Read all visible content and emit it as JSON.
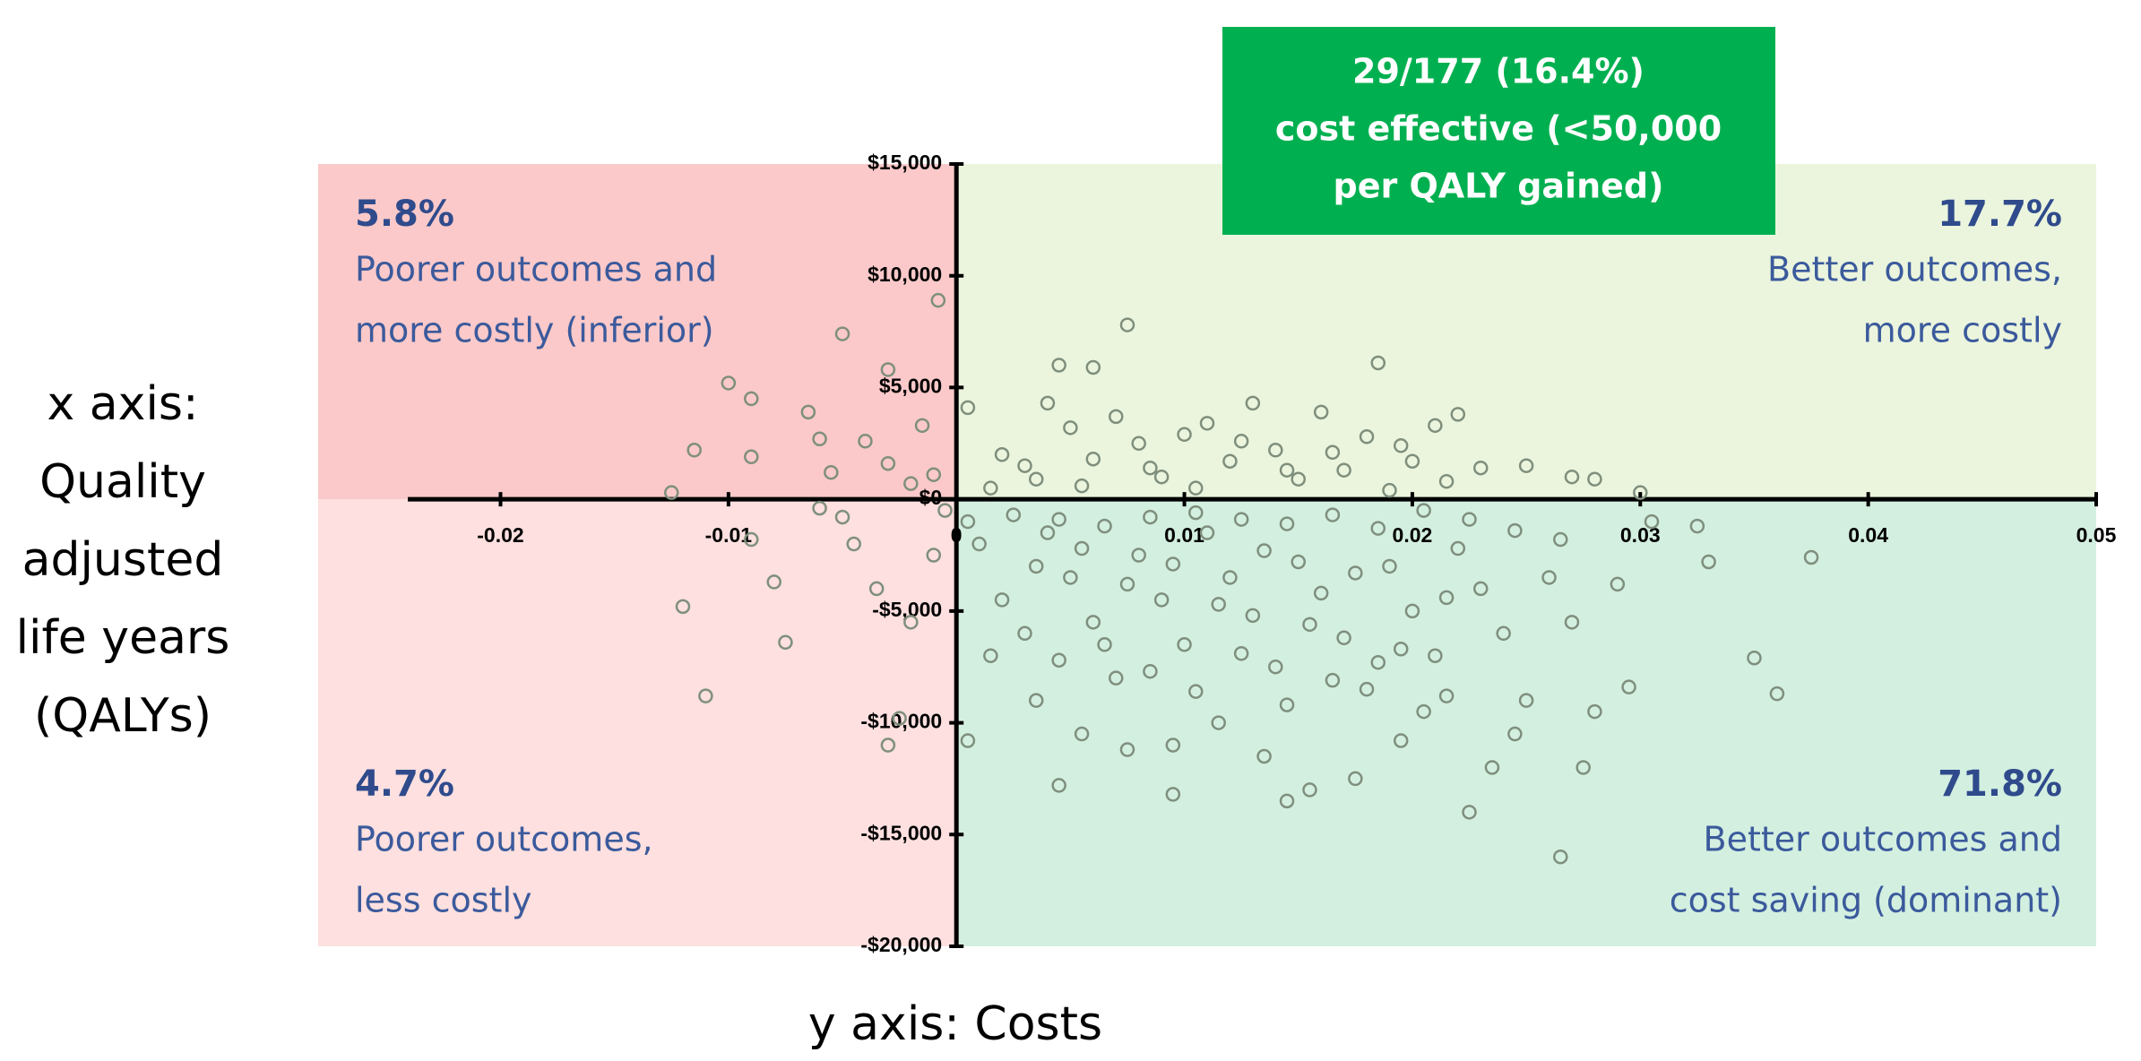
{
  "chart_data": {
    "type": "scatter",
    "x_label": [
      "x axis:",
      "Quality",
      "adjusted",
      "life years",
      "(QALYs)"
    ],
    "y_label": "y axis: Costs",
    "callout": [
      "29/177 (16.4%)",
      "cost effective (<50,000",
      "per QALY gained)"
    ],
    "callout_color": "#00b050",
    "quadrants": [
      {
        "corner": "top-left",
        "color": "#fbc9c9",
        "percent": "5.8%",
        "lines": [
          "Poorer outcomes and",
          "more costly (inferior)"
        ]
      },
      {
        "corner": "top-right",
        "color": "#ebf5dd",
        "percent": "17.7%",
        "lines": [
          "Better outcomes,",
          "more costly"
        ]
      },
      {
        "corner": "bottom-left",
        "color": "#fde0df",
        "percent": "4.7%",
        "lines": [
          "Poorer outcomes,",
          "less costly"
        ]
      },
      {
        "corner": "bottom-right",
        "color": "#d3efe0",
        "percent": "71.8%",
        "lines": [
          "Better outcomes and",
          "cost saving (dominant)"
        ]
      }
    ],
    "color": "#7f8f7d",
    "xlim": [
      -0.028,
      0.05
    ],
    "ylim": [
      -20000,
      15000
    ],
    "xticks": [
      -0.02,
      -0.01,
      0,
      0.01,
      0.02,
      0.03,
      0.04,
      0.05
    ],
    "yticks": [
      {
        "value": -20000,
        "label": "-$20,000"
      },
      {
        "value": -15000,
        "label": "-$15,000"
      },
      {
        "value": -10000,
        "label": "-$10,000"
      },
      {
        "value": -5000,
        "label": "-$5,000"
      },
      {
        "value": 0,
        "label": "$0"
      },
      {
        "value": 5000,
        "label": "$5,000"
      },
      {
        "value": 10000,
        "label": "$10,000"
      },
      {
        "value": 15000,
        "label": "$15,000"
      }
    ],
    "x": [
      -0.012,
      -0.011,
      -0.01,
      -0.009,
      -0.0115,
      -0.0125,
      -0.0075,
      -0.008,
      -0.009,
      -0.005,
      -0.003,
      -0.0008,
      0.0075,
      0.0185,
      0.006,
      0.0045,
      -0.009,
      -0.0065,
      -0.006,
      -0.004,
      -0.003,
      -0.002,
      -0.0015,
      -0.001,
      -0.0005,
      0.0005,
      0.002,
      0.003,
      0.004,
      0.005,
      0.006,
      0.007,
      0.008,
      0.009,
      0.01,
      0.011,
      0.012,
      0.013,
      0.014,
      0.015,
      0.016,
      0.017,
      0.018,
      0.019,
      0.02,
      0.021,
      0.022,
      0.023,
      0.025,
      0.027,
      0.028,
      0.03,
      0.0325,
      0.033,
      0.0375,
      0.035,
      0.036,
      0.029,
      0.0295,
      0.0305,
      0.001,
      0.002,
      0.003,
      0.004,
      0.005,
      0.006,
      0.007,
      0.008,
      0.009,
      0.01,
      0.011,
      0.012,
      0.013,
      0.014,
      0.015,
      0.016,
      0.017,
      0.018,
      0.019,
      0.02,
      0.021,
      0.022,
      0.023,
      0.024,
      0.025,
      0.026,
      0.027,
      0.028,
      0.0015,
      0.0035,
      0.0055,
      0.0075,
      0.0095,
      0.0115,
      0.0135,
      0.0155,
      0.0175,
      0.0195,
      0.0225,
      0.0265,
      0.0045,
      0.0095,
      0.0145,
      0.0205,
      0.0235,
      0.0275,
      0.0005,
      -0.0025,
      -0.003,
      -0.002,
      -0.001,
      -0.0035,
      -0.0045,
      -0.005,
      -0.0055,
      -0.006,
      0.0005,
      0.0025,
      0.0045,
      0.0065,
      0.0085,
      0.0105,
      0.0125,
      0.0145,
      0.0165,
      0.0185,
      0.0205,
      0.0225,
      0.0245,
      0.0265,
      0.0035,
      0.0055,
      0.0075,
      0.0095,
      0.0115,
      0.0135,
      0.0155,
      0.0175,
      0.0195,
      0.0215,
      0.0045,
      0.0065,
      0.0085,
      0.0105,
      0.0125,
      0.0145,
      0.0165,
      0.0185,
      0.0215,
      0.0245,
      0.0015,
      0.0035,
      0.0055,
      0.0085,
      0.0105,
      0.0125,
      0.0145,
      0.0165,
      0.0195,
      0.0215
    ],
    "values": [
      -4800,
      -8800,
      5200,
      4500,
      2200,
      300,
      -6400,
      -3700,
      -1800,
      7400,
      5800,
      8900,
      7800,
      6100,
      5900,
      6000,
      1900,
      3900,
      2700,
      2600,
      1600,
      700,
      3300,
      1100,
      -500,
      4100,
      2000,
      1500,
      4300,
      3200,
      1800,
      3700,
      2500,
      1000,
      2900,
      3400,
      1700,
      4300,
      2200,
      900,
      3900,
      1300,
      2800,
      400,
      1700,
      3300,
      3800,
      1400,
      1500,
      1000,
      900,
      300,
      -1200,
      -2800,
      -2600,
      -7100,
      -8700,
      -3800,
      -8400,
      -1000,
      -2000,
      -4500,
      -6000,
      -1500,
      -3500,
      -5500,
      -8000,
      -2500,
      -4500,
      -6500,
      -1500,
      -3500,
      -5200,
      -7500,
      -2800,
      -4200,
      -6200,
      -8500,
      -3000,
      -5000,
      -7000,
      -2200,
      -4000,
      -6000,
      -9000,
      -3500,
      -5500,
      -9500,
      -7000,
      -9000,
      -10500,
      -11200,
      -13200,
      -10000,
      -11500,
      -13000,
      -12500,
      -10800,
      -14000,
      -16000,
      -12800,
      -11000,
      -13500,
      -9500,
      -12000,
      -12000,
      -10800,
      -9800,
      -11000,
      -5500,
      -2500,
      -4000,
      -2000,
      -800,
      1200,
      -400,
      -1000,
      -700,
      -900,
      -1200,
      -800,
      -600,
      -900,
      -1100,
      -700,
      -1300,
      -500,
      -900,
      -1400,
      -1800,
      -3000,
      -2200,
      -3800,
      -2900,
      -4700,
      -2300,
      -5600,
      -3300,
      -6700,
      -4400,
      -7200,
      -6500,
      -7700,
      -8600,
      -6900,
      -9200,
      -8100,
      -7300,
      -8800,
      -10500,
      500,
      900,
      600,
      1400,
      500,
      2600,
      1300,
      2100,
      2400,
      800
    ]
  }
}
